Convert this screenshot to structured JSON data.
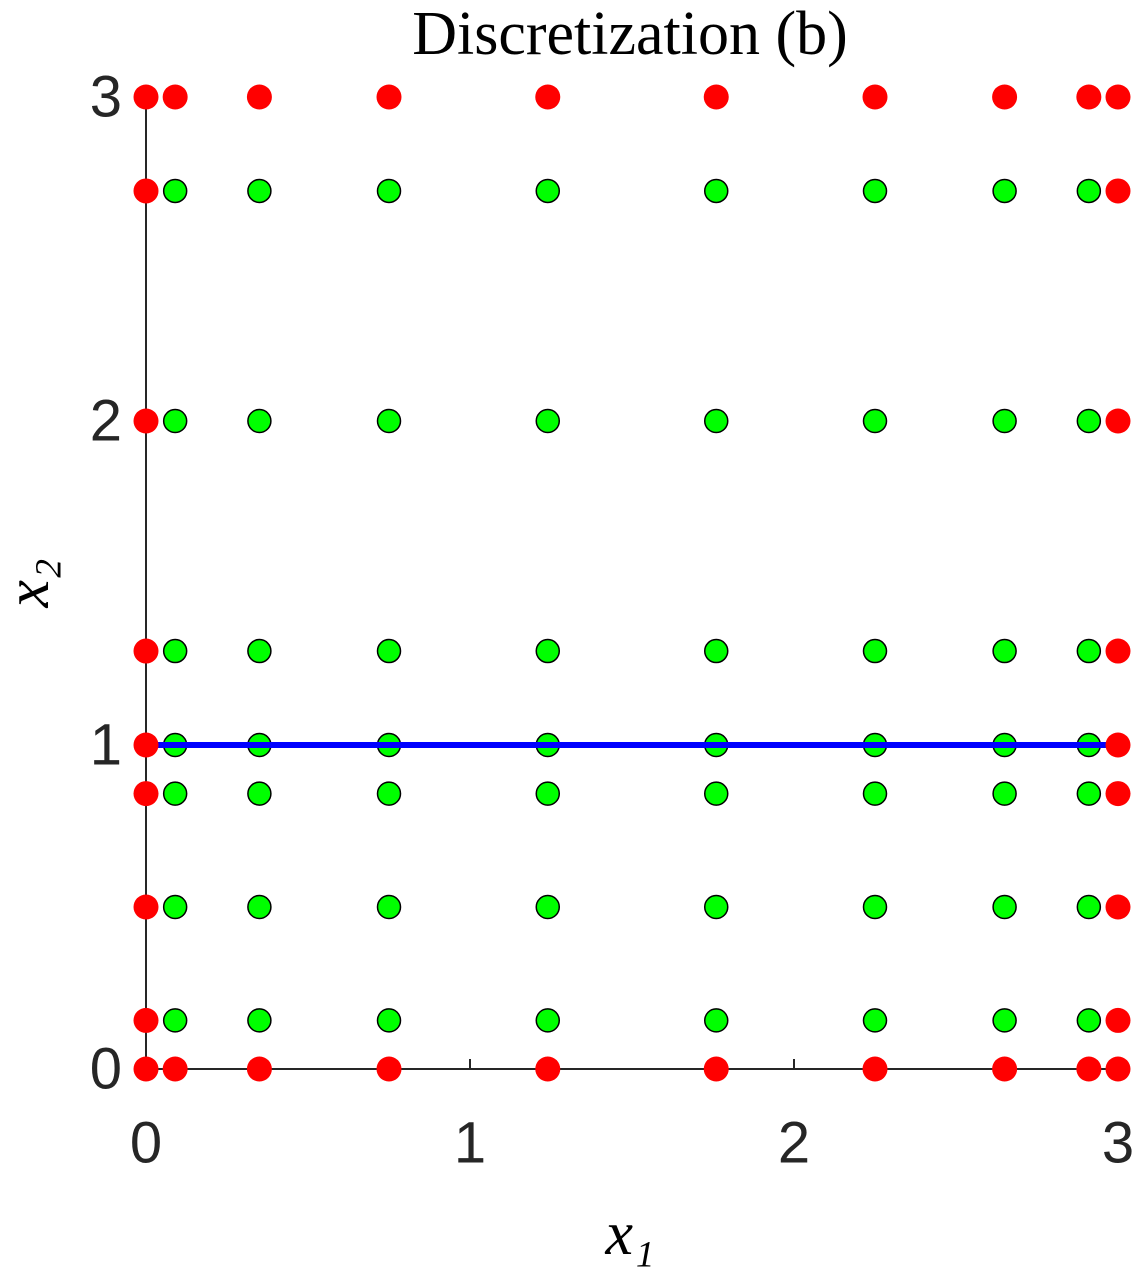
{
  "chart_data": {
    "type": "scatter",
    "title": "Discretization (b)",
    "xlabel": "x₁",
    "ylabel": "x₂",
    "xlim": [
      0,
      3
    ],
    "ylim": [
      0,
      3
    ],
    "xticks": [
      0,
      1,
      2,
      3
    ],
    "yticks": [
      0,
      1,
      2,
      3
    ],
    "grid": false,
    "series": [
      {
        "mode": "markers",
        "color": "#00ff00",
        "edgecolor": "#000000",
        "x": [
          0.09,
          0.35,
          0.75,
          1.24,
          1.76,
          2.25,
          2.65,
          2.91,
          0.09,
          0.35,
          0.75,
          1.24,
          1.76,
          2.25,
          2.65,
          2.91,
          0.09,
          0.35,
          0.75,
          1.24,
          1.76,
          2.25,
          2.65,
          2.91,
          0.09,
          0.35,
          0.75,
          1.24,
          1.76,
          2.25,
          2.65,
          2.91,
          0.09,
          0.35,
          0.75,
          1.24,
          1.76,
          2.25,
          2.65,
          2.91,
          0.09,
          0.35,
          0.75,
          1.24,
          1.76,
          2.25,
          2.65,
          2.91,
          0.09,
          0.35,
          0.75,
          1.24,
          1.76,
          2.25,
          2.65,
          2.91
        ],
        "y": [
          0.15,
          0.15,
          0.15,
          0.15,
          0.15,
          0.15,
          0.15,
          0.15,
          0.5,
          0.5,
          0.5,
          0.5,
          0.5,
          0.5,
          0.5,
          0.5,
          0.85,
          0.85,
          0.85,
          0.85,
          0.85,
          0.85,
          0.85,
          0.85,
          1,
          1,
          1,
          1,
          1,
          1,
          1,
          1,
          1.29,
          1.29,
          1.29,
          1.29,
          1.29,
          1.29,
          1.29,
          1.29,
          2,
          2,
          2,
          2,
          2,
          2,
          2,
          2,
          2.71,
          2.71,
          2.71,
          2.71,
          2.71,
          2.71,
          2.71,
          2.71
        ]
      },
      {
        "mode": "line",
        "color": "#0000ff",
        "x": [
          0,
          3
        ],
        "y": [
          1,
          1
        ]
      },
      {
        "mode": "markers",
        "color": "#ff0000",
        "x": [
          0,
          0.09,
          0.35,
          0.75,
          1.24,
          1.76,
          2.25,
          2.65,
          2.91,
          3,
          0,
          0.09,
          0.35,
          0.75,
          1.24,
          1.76,
          2.25,
          2.65,
          2.91,
          3,
          0,
          0,
          0,
          0,
          0,
          0,
          0,
          3,
          3,
          3,
          3,
          3,
          3,
          3
        ],
        "y": [
          0,
          0,
          0,
          0,
          0,
          0,
          0,
          0,
          0,
          0,
          3,
          3,
          3,
          3,
          3,
          3,
          3,
          3,
          3,
          3,
          0.15,
          0.5,
          0.85,
          1,
          1.29,
          2,
          2.71,
          0.15,
          0.5,
          0.85,
          1,
          1.29,
          2,
          2.71
        ]
      }
    ]
  }
}
